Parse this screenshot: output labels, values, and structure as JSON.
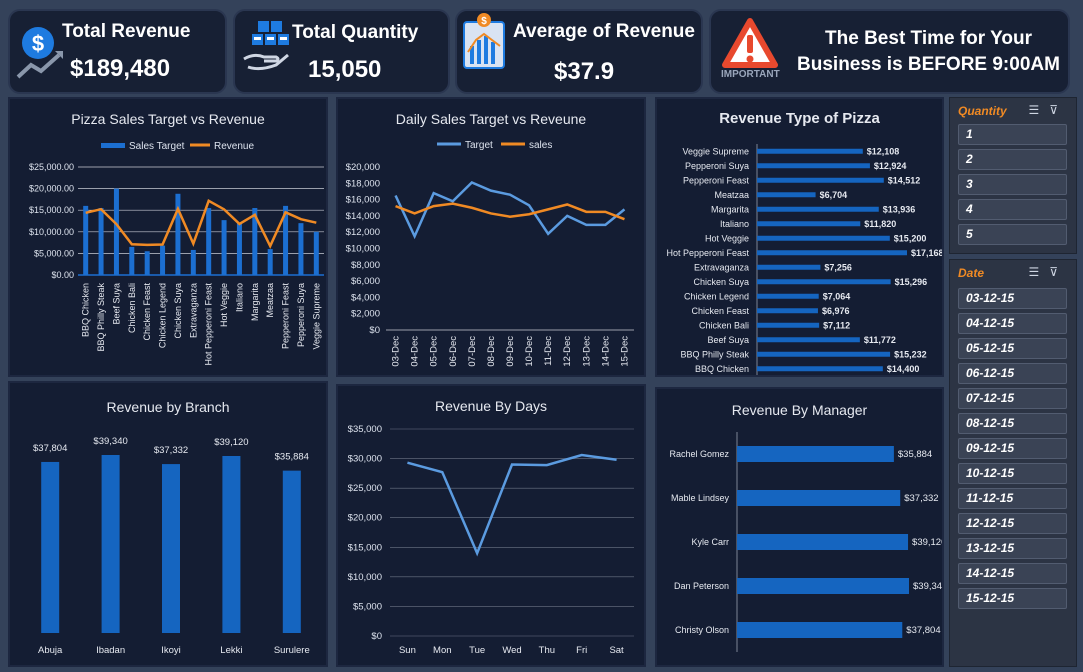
{
  "kpis": {
    "total_revenue": {
      "title": "Total Revenue",
      "value": "$189,480"
    },
    "total_quantity": {
      "title": "Total Quantity",
      "value": "15,050"
    },
    "avg_revenue": {
      "title": "Average of Revenue",
      "value": "$37.9"
    },
    "best_time": {
      "line1": "The Best Time for Your",
      "line2": "Business is BEFORE 9:00AM",
      "badge": "IMPORTANT"
    }
  },
  "slicers": {
    "quantity": {
      "header": "Quantity",
      "items": [
        "1",
        "2",
        "3",
        "4",
        "5"
      ]
    },
    "date": {
      "header": "Date",
      "items": [
        "03-12-15",
        "04-12-15",
        "05-12-15",
        "06-12-15",
        "07-12-15",
        "08-12-15",
        "09-12-15",
        "10-12-15",
        "11-12-15",
        "12-12-15",
        "13-12-15",
        "14-12-15",
        "15-12-15"
      ]
    }
  },
  "colors": {
    "target": "#1c6fd1",
    "revenue": "#f08a24",
    "line_blue": "#5b9be0",
    "bar": "#1565c0"
  },
  "chart_data": [
    {
      "id": "target_vs_revenue",
      "type": "bar",
      "title": "Pizza Sales Target vs Revenue",
      "categories": [
        "BBQ Chicken",
        "BBQ Philly Steak",
        "Beef Suya",
        "Chicken Bali",
        "Chicken Feast",
        "Chicken Legend",
        "Chicken Suya",
        "Extravaganza",
        "Hot Pepperoni Feast",
        "Hot Veggie",
        "Italiano",
        "Margarita",
        "Meatzaa",
        "Pepperoni Feast",
        "Pepperoni Suya",
        "Veggie Supreme"
      ],
      "series": [
        {
          "name": "Sales Target",
          "values": [
            16000,
            15500,
            20000,
            6500,
            5500,
            6800,
            18800,
            5800,
            15500,
            12700,
            12000,
            15500,
            6000,
            16000,
            12000,
            10000
          ]
        },
        {
          "name": "Revenue",
          "values": [
            14400,
            15232,
            11772,
            7112,
            6976,
            7064,
            15296,
            7256,
            17168,
            15200,
            11820,
            13936,
            6704,
            14512,
            12924,
            12108
          ]
        }
      ],
      "yticks": [
        "$0.00",
        "$5,000.00",
        "$10,000.00",
        "$15,000.00",
        "$20,000.00",
        "$25,000.00"
      ],
      "ylim": [
        0,
        25000
      ]
    },
    {
      "id": "daily_target_vs_sales",
      "type": "line",
      "title": "Daily Sales Target vs Reveune",
      "x": [
        "03-Dec",
        "04-Dec",
        "05-Dec",
        "06-Dec",
        "07-Dec",
        "08-Dec",
        "09-Dec",
        "10-Dec",
        "11-Dec",
        "12-Dec",
        "13-Dec",
        "14-Dec",
        "15-Dec"
      ],
      "series": [
        {
          "name": "Target",
          "values": [
            16500,
            11500,
            16800,
            15800,
            18100,
            17100,
            16600,
            15300,
            11800,
            14000,
            12900,
            12900,
            14800
          ]
        },
        {
          "name": "sales",
          "values": [
            15200,
            14300,
            15200,
            15500,
            15000,
            14300,
            13900,
            14200,
            14800,
            15400,
            14500,
            14500,
            13600
          ]
        }
      ],
      "yticks": [
        "$0",
        "$2,000",
        "$4,000",
        "$6,000",
        "$8,000",
        "$10,000",
        "$12,000",
        "$14,000",
        "$16,000",
        "$18,000",
        "$20,000"
      ],
      "ylim": [
        0,
        20000
      ]
    },
    {
      "id": "revenue_type",
      "type": "bar",
      "title": "Revenue Type of Pizza",
      "categories": [
        "Veggie Supreme",
        "Pepperoni Suya",
        "Pepperoni Feast",
        "Meatzaa",
        "Margarita",
        "Italiano",
        "Hot Veggie",
        "Hot Pepperoni Feast",
        "Extravaganza",
        "Chicken Suya",
        "Chicken Legend",
        "Chicken Feast",
        "Chicken Bali",
        "Beef Suya",
        "BBQ Philly Steak",
        "BBQ Chicken"
      ],
      "values": [
        12108,
        12924,
        14512,
        6704,
        13936,
        11820,
        15200,
        17168,
        7256,
        15296,
        7064,
        6976,
        7112,
        11772,
        15232,
        14400
      ],
      "labels": [
        "$12,108",
        "$12,924",
        "$14,512",
        "$6,704",
        "$13,936",
        "$11,820",
        "$15,200",
        "$17,168",
        "$7,256",
        "$15,296",
        "$7,064",
        "$6,976",
        "$7,112",
        "$11,772",
        "$15,232",
        "$14,400"
      ]
    },
    {
      "id": "revenue_branch",
      "type": "bar",
      "title": "Revenue by Branch",
      "categories": [
        "Abuja",
        "Ibadan",
        "Ikoyi",
        "Lekki",
        "Surulere"
      ],
      "values": [
        37804,
        39340,
        37332,
        39120,
        35884
      ],
      "labels": [
        "$37,804",
        "$39,340",
        "$37,332",
        "$39,120",
        "$35,884"
      ]
    },
    {
      "id": "revenue_days",
      "type": "line",
      "title": "Revenue By Days",
      "x": [
        "Sun",
        "Mon",
        "Tue",
        "Wed",
        "Thu",
        "Fri",
        "Sat"
      ],
      "values": [
        29300,
        27700,
        14000,
        29000,
        28900,
        30600,
        29800
      ],
      "yticks": [
        "$0",
        "$5,000",
        "$10,000",
        "$15,000",
        "$20,000",
        "$25,000",
        "$30,000",
        "$35,000"
      ],
      "ylim": [
        0,
        35000
      ]
    },
    {
      "id": "revenue_manager",
      "type": "bar",
      "title": "Revenue By Manager",
      "categories": [
        "Rachel Gomez",
        "Mable Lindsey",
        "Kyle Carr",
        "Dan Peterson",
        "Christy Olson"
      ],
      "values": [
        35884,
        37332,
        39120,
        39340,
        37804
      ],
      "labels": [
        "$35,884",
        "$37,332",
        "$39,120",
        "$39,340",
        "$37,804"
      ]
    }
  ]
}
